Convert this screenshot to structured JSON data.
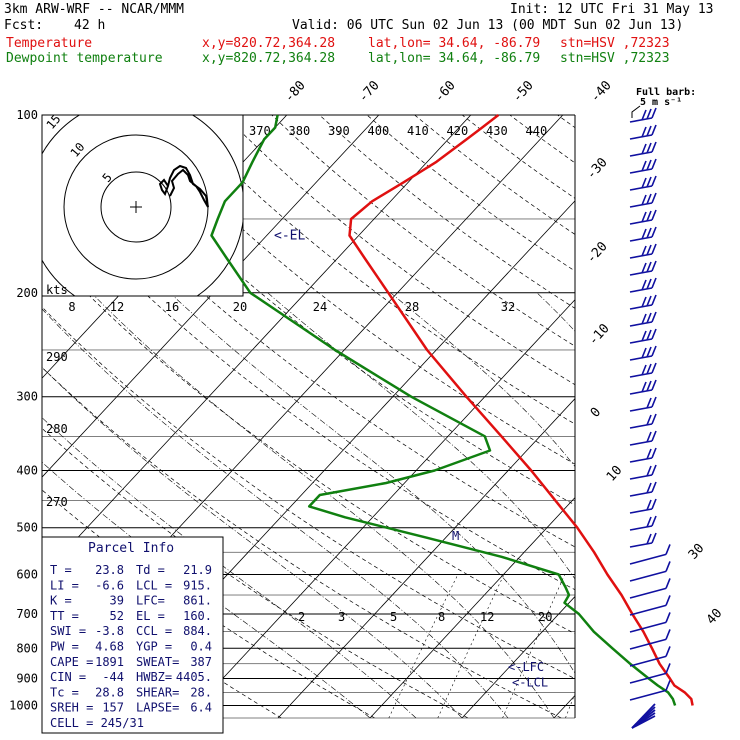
{
  "header": {
    "model": "3km ARW-WRF -- NCAR/MMM",
    "init": "Init: 12 UTC Fri 31 May 13",
    "fcst_label": "Fcst:",
    "fcst_value": "42 h",
    "valid": "Valid: 06 UTC Sun 02 Jun 13 (00 MDT Sun 02 Jun 13)",
    "temp_label": "Temperature",
    "dew_label": "Dewpoint temperature",
    "xy": "x,y=820.72,364.28",
    "latlon": "lat,lon= 34.64, -86.79",
    "stn": "stn=HSV ,72323",
    "barb_title": "Full barb:",
    "barb_value": "5 m s⁻¹"
  },
  "colors": {
    "temperature": "#e01010",
    "dewpoint": "#108010",
    "wind": "#1010a0",
    "text_blue": "#10106e"
  },
  "parcel_info": {
    "title": "Parcel Info",
    "rows": [
      [
        "T  =",
        "23.8",
        "Td =",
        "21.9"
      ],
      [
        "LI =",
        "-6.6",
        "LCL =",
        "915."
      ],
      [
        "K  =",
        "39",
        "LFC=",
        "861."
      ],
      [
        "TT =",
        "52",
        "EL =",
        "160."
      ],
      [
        "SWI =",
        "-3.8",
        "CCL =",
        "884."
      ],
      [
        "PW =",
        "4.68",
        "YGP =",
        "0.4"
      ],
      [
        "CAPE =",
        "1891",
        "SWEAT=",
        "387"
      ],
      [
        "CIN =",
        "-44",
        "HWBZ=",
        "4405."
      ],
      [
        "Tc =",
        "28.8",
        "SHEAR=",
        "28."
      ],
      [
        "SREH =",
        "157",
        "LAPSE=",
        "6.4"
      ],
      [
        "CELL = 245/31",
        "",
        "",
        ""
      ]
    ]
  },
  "chart_data": {
    "type": "line",
    "subtype": "skew-T log-P",
    "pressure_levels": [
      100,
      200,
      300,
      400,
      500,
      600,
      700,
      800,
      900,
      1000
    ],
    "pressure_labels": [
      "100",
      "200",
      "300",
      "400",
      "500",
      "600",
      "700",
      "800",
      "900",
      "1000"
    ],
    "isotherm_labels_top": [
      "-80",
      "-70",
      "-60",
      "-50",
      "-40"
    ],
    "isotherm_labels_right": [
      "-30",
      "-20",
      "-10",
      "0",
      "10",
      "30",
      "40"
    ],
    "theta_labels": [
      "370",
      "380",
      "390",
      "400",
      "410",
      "420",
      "430",
      "440"
    ],
    "theta_left_labels": [
      "290",
      "280",
      "270"
    ],
    "hodo_speed_label": "kts",
    "hodo_speed_ticks": [
      "8",
      "12",
      "16",
      "20",
      "24",
      "28",
      "32"
    ],
    "hodo_ring_labels": [
      "5",
      "10",
      "15"
    ],
    "mixing_ratio_labels": [
      "2",
      "3",
      "5",
      "8",
      "12",
      "20"
    ],
    "annotations": {
      "el": "<-EL",
      "lfc": "<-LFC",
      "lcl": "<-LCL",
      "cursor": "M"
    },
    "series": [
      {
        "name": "Temperature",
        "points": [
          [
            1000,
            23.8
          ],
          [
            975,
            23.0
          ],
          [
            950,
            21.6
          ],
          [
            925,
            19.8
          ],
          [
            900,
            18.6
          ],
          [
            850,
            16.0
          ],
          [
            800,
            13.6
          ],
          [
            750,
            11.0
          ],
          [
            700,
            8.0
          ],
          [
            650,
            4.9
          ],
          [
            600,
            1.3
          ],
          [
            550,
            -2.4
          ],
          [
            500,
            -6.7
          ],
          [
            450,
            -11.8
          ],
          [
            400,
            -17.5
          ],
          [
            350,
            -24.2
          ],
          [
            300,
            -32.0
          ],
          [
            250,
            -41.0
          ],
          [
            200,
            -51.0
          ],
          [
            175,
            -57.0
          ],
          [
            160,
            -61.0
          ],
          [
            150,
            -62.5
          ],
          [
            140,
            -62.0
          ],
          [
            130,
            -60.5
          ],
          [
            120,
            -59.0
          ],
          [
            110,
            -58.0
          ],
          [
            105,
            -57.5
          ],
          [
            100,
            -57.0
          ]
        ]
      },
      {
        "name": "Dewpoint temperature",
        "points": [
          [
            1000,
            21.9
          ],
          [
            975,
            21.0
          ],
          [
            950,
            19.8
          ],
          [
            925,
            18.0
          ],
          [
            900,
            16.3
          ],
          [
            850,
            12.8
          ],
          [
            800,
            9.3
          ],
          [
            750,
            5.6
          ],
          [
            700,
            2.2
          ],
          [
            670,
            -0.5
          ],
          [
            650,
            -0.8
          ],
          [
            630,
            -2.0
          ],
          [
            600,
            -4.0
          ],
          [
            560,
            -12.0
          ],
          [
            520,
            -22.0
          ],
          [
            480,
            -33.0
          ],
          [
            460,
            -38.0
          ],
          [
            440,
            -38.0
          ],
          [
            420,
            -32.0
          ],
          [
            400,
            -28.0
          ],
          [
            370,
            -24.0
          ],
          [
            350,
            -26.0
          ],
          [
            300,
            -38.0
          ],
          [
            250,
            -51.0
          ],
          [
            200,
            -66.0
          ],
          [
            175,
            -72.0
          ],
          [
            160,
            -76.0
          ],
          [
            150,
            -77.0
          ],
          [
            140,
            -78.0
          ],
          [
            130,
            -78.0
          ],
          [
            120,
            -79.0
          ],
          [
            110,
            -80.0
          ],
          [
            105,
            -80.0
          ],
          [
            100,
            -81.0
          ]
        ]
      }
    ]
  }
}
